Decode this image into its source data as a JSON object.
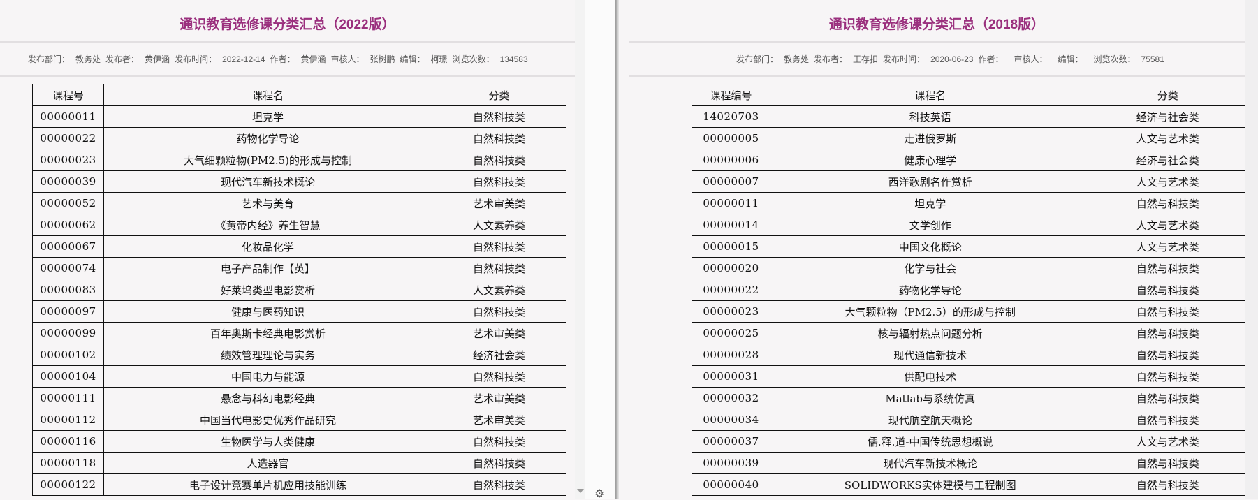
{
  "left": {
    "title": "通识教育选修课分类汇总（2022版）",
    "meta": [
      {
        "label": "发布部门：",
        "value": "教务处"
      },
      {
        "label": "发布者：",
        "value": "黄伊涵"
      },
      {
        "label": "发布时间：",
        "value": "2022-12-14"
      },
      {
        "label": "作者：",
        "value": "黄伊涵"
      },
      {
        "label": "审核人：",
        "value": "张树鹏"
      },
      {
        "label": "编辑：",
        "value": "柯璟"
      },
      {
        "label": "浏览次数：",
        "value": "134583"
      }
    ],
    "headers": [
      "课程号",
      "课程名",
      "分类"
    ],
    "rows": [
      [
        "00000011",
        "坦克学",
        "自然科技类"
      ],
      [
        "00000022",
        "药物化学导论",
        "自然科技类"
      ],
      [
        "00000023",
        "大气细颗粒物(PM2.5)的形成与控制",
        "自然科技类"
      ],
      [
        "00000039",
        "现代汽车新技术概论",
        "自然科技类"
      ],
      [
        "00000052",
        "艺术与美育",
        "艺术审美类"
      ],
      [
        "00000062",
        "《黄帝内经》养生智慧",
        "人文素养类"
      ],
      [
        "00000067",
        "化妆品化学",
        "自然科技类"
      ],
      [
        "00000074",
        "电子产品制作【英】",
        "自然科技类"
      ],
      [
        "00000083",
        "好莱坞类型电影赏析",
        "人文素养类"
      ],
      [
        "00000097",
        "健康与医药知识",
        "自然科技类"
      ],
      [
        "00000099",
        "百年奥斯卡经典电影赏析",
        "艺术审美类"
      ],
      [
        "00000102",
        "绩效管理理论与实务",
        "经济社会类"
      ],
      [
        "00000104",
        "中国电力与能源",
        "自然科技类"
      ],
      [
        "00000111",
        "悬念与科幻电影经典",
        "艺术审美类"
      ],
      [
        "00000112",
        "中国当代电影史优秀作品研究",
        "艺术审美类"
      ],
      [
        "00000116",
        "生物医学与人类健康",
        "自然科技类"
      ],
      [
        "00000118",
        "人造器官",
        "自然科技类"
      ],
      [
        "00000122",
        "电子设计竞赛单片机应用技能训练",
        "自然科技类"
      ]
    ]
  },
  "right": {
    "title": "通识教育选修课分类汇总（2018版）",
    "meta": [
      {
        "label": "发布部门：",
        "value": "教务处"
      },
      {
        "label": "发布者：",
        "value": "王存扣"
      },
      {
        "label": "发布时间：",
        "value": "2020-06-23"
      },
      {
        "label": "作者：",
        "value": ""
      },
      {
        "label": "审核人：",
        "value": ""
      },
      {
        "label": "编辑：",
        "value": ""
      },
      {
        "label": "浏览次数：",
        "value": "75581"
      }
    ],
    "headers": [
      "课程编号",
      "课程名",
      "分类"
    ],
    "rows": [
      [
        "14020703",
        "科技英语",
        "经济与社会类"
      ],
      [
        "00000005",
        "走进俄罗斯",
        "人文与艺术类"
      ],
      [
        "00000006",
        "健康心理学",
        "经济与社会类"
      ],
      [
        "00000007",
        "西洋歌剧名作赏析",
        "人文与艺术类"
      ],
      [
        "00000011",
        "坦克学",
        "自然与科技类"
      ],
      [
        "00000014",
        "文学创作",
        "人文与艺术类"
      ],
      [
        "00000015",
        "中国文化概论",
        "人文与艺术类"
      ],
      [
        "00000020",
        "化学与社会",
        "自然与科技类"
      ],
      [
        "00000022",
        "药物化学导论",
        "自然与科技类"
      ],
      [
        "00000023",
        "大气颗粒物（PM2.5）的形成与控制",
        "自然与科技类"
      ],
      [
        "00000025",
        "核与辐射热点问题分析",
        "自然与科技类"
      ],
      [
        "00000028",
        "现代通信新技术",
        "自然与科技类"
      ],
      [
        "00000031",
        "供配电技术",
        "自然与科技类"
      ],
      [
        "00000032",
        "Matlab与系统仿真",
        "自然与科技类"
      ],
      [
        "00000034",
        "现代航空航天概论",
        "自然与科技类"
      ],
      [
        "00000037",
        "儒.释.道-中国传统思想概说",
        "人文与艺术类"
      ],
      [
        "00000039",
        "现代汽车新技术概论",
        "自然与科技类"
      ],
      [
        "00000040",
        "SOLIDWORKS实体建模与工程制图",
        "自然与科技类"
      ]
    ]
  },
  "colors": {
    "title": "#9a2f7d",
    "background": "#f7f5f6"
  },
  "icons": {
    "settings": "gear-icon",
    "scroll_down": "triangle-down"
  }
}
